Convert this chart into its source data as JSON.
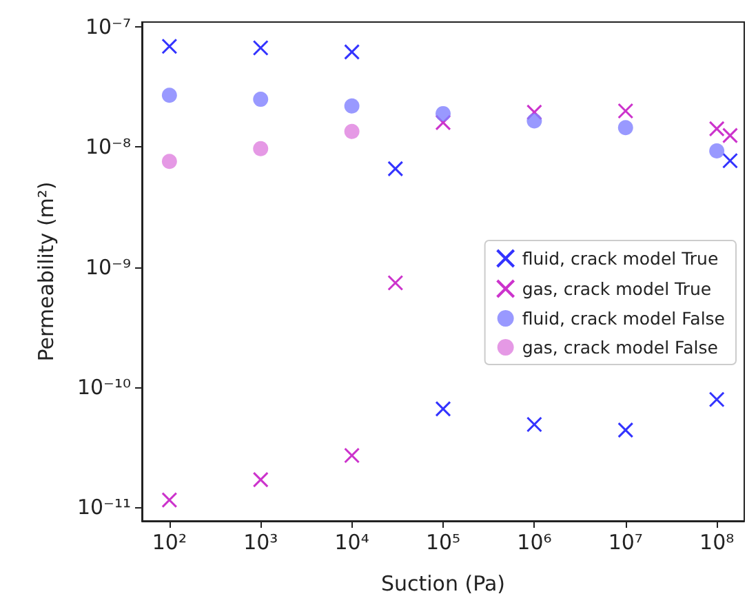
{
  "chart_data": {
    "type": "scatter",
    "xlabel": "Suction (Pa)",
    "ylabel": "Permeability (m²)",
    "log": "xy",
    "grid": false,
    "legend": "center right",
    "xlim": [
      50,
      200000000
    ],
    "ylim": [
      7.7e-12,
      1.1e-07
    ],
    "xticks": [
      {
        "value": 100,
        "label": "10²"
      },
      {
        "value": 1000,
        "label": "10³"
      },
      {
        "value": 10000,
        "label": "10⁴"
      },
      {
        "value": 100000,
        "label": "10⁵"
      },
      {
        "value": 1000000,
        "label": "10⁶"
      },
      {
        "value": 10000000,
        "label": "10⁷"
      },
      {
        "value": 100000000,
        "label": "10⁸"
      }
    ],
    "yticks": [
      {
        "value": 1e-11,
        "label": "10⁻¹¹"
      },
      {
        "value": 1e-10,
        "label": "10⁻¹⁰"
      },
      {
        "value": 1e-09,
        "label": "10⁻⁹"
      },
      {
        "value": 1e-08,
        "label": "10⁻⁸"
      },
      {
        "value": 1e-07,
        "label": "10⁻⁷"
      }
    ],
    "series": [
      {
        "name": "fluid, crack model True",
        "color": "#0000ff",
        "marker": "cross",
        "x": [
          100,
          1000,
          10000,
          30000,
          100000,
          1000000,
          10000000,
          100000000,
          140000000
        ],
        "values": [
          6.9e-08,
          6.7e-08,
          6.2e-08,
          6.6e-09,
          6.6e-11,
          4.9e-11,
          4.4e-11,
          7.9e-11,
          7.7e-09
        ]
      },
      {
        "name": "gas, crack model True",
        "color": "#bf00bf",
        "marker": "cross",
        "x": [
          100,
          1000,
          10000,
          30000,
          100000,
          1000000,
          10000000,
          100000000,
          140000000
        ],
        "values": [
          1.15e-11,
          1.7e-11,
          2.7e-11,
          7.4e-10,
          1.6e-08,
          1.95e-08,
          2e-08,
          1.42e-08,
          1.25e-08
        ]
      },
      {
        "name": "fluid, crack model False",
        "color": "#8080ff",
        "marker": "circle",
        "x": [
          100,
          1000,
          10000,
          100000,
          1000000,
          10000000,
          100000000
        ],
        "values": [
          2.7e-08,
          2.5e-08,
          2.2e-08,
          1.9e-08,
          1.65e-08,
          1.45e-08,
          9.3e-09
        ]
      },
      {
        "name": "gas, crack model False",
        "color": "#df80df",
        "marker": "circle",
        "x": [
          100,
          1000,
          10000
        ],
        "values": [
          7.6e-09,
          9.7e-09,
          1.35e-08
        ]
      }
    ]
  }
}
